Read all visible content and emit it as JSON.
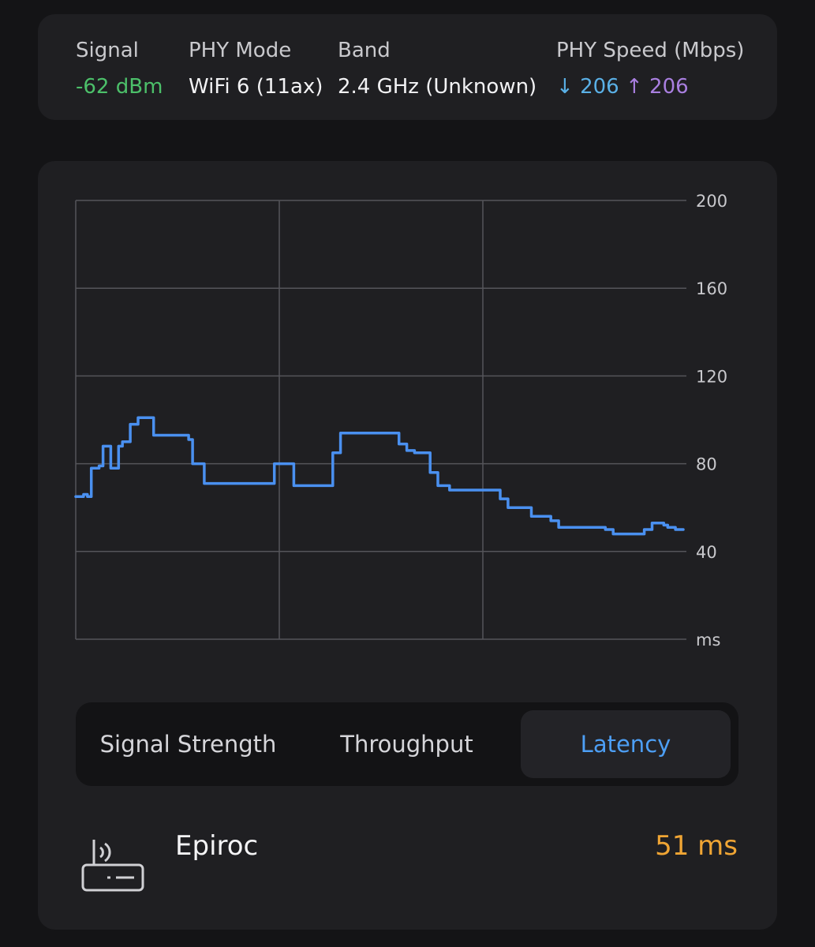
{
  "info": {
    "signal": {
      "label": "Signal",
      "value": "-62 dBm"
    },
    "phy_mode": {
      "label": "PHY Mode",
      "value": "WiFi 6 (11ax)"
    },
    "band": {
      "label": "Band",
      "value": "2.4 GHz (Unknown)"
    },
    "phy_speed": {
      "label": "PHY Speed (Mbps)",
      "down_arrow": "↓",
      "down": "206",
      "up_arrow": "↑",
      "up": "206"
    }
  },
  "chart_data": {
    "type": "line",
    "title": "",
    "xlabel": "",
    "ylabel": "ms",
    "ylim": [
      0,
      200
    ],
    "y_ticks": [
      "200",
      "160",
      "120",
      "80",
      "40",
      "ms"
    ],
    "grid": true,
    "vertical_grid_divisions": 3,
    "series": [
      {
        "color": "#4a90f0",
        "values": [
          65,
          65,
          66,
          65,
          78,
          78,
          79,
          88,
          88,
          78,
          78,
          88,
          90,
          90,
          98,
          98,
          101,
          101,
          101,
          101,
          93,
          93,
          93,
          93,
          93,
          93,
          93,
          93,
          93,
          91,
          80,
          80,
          80,
          71,
          71,
          71,
          71,
          71,
          71,
          71,
          71,
          71,
          71,
          71,
          71,
          71,
          71,
          71,
          71,
          71,
          71,
          80,
          80,
          80,
          80,
          80,
          70,
          70,
          70,
          70,
          70,
          70,
          70,
          70,
          70,
          70,
          85,
          85,
          94,
          94,
          94,
          94,
          94,
          94,
          94,
          94,
          94,
          94,
          94,
          94,
          94,
          94,
          94,
          89,
          89,
          86,
          86,
          85,
          85,
          85,
          85,
          76,
          76,
          70,
          70,
          70,
          68,
          68,
          68,
          68,
          68,
          68,
          68,
          68,
          68,
          68,
          68,
          68,
          68,
          64,
          64,
          60,
          60,
          60,
          60,
          60,
          60,
          56,
          56,
          56,
          56,
          56,
          54,
          54,
          51,
          51,
          51,
          51,
          51,
          51,
          51,
          51,
          51,
          51,
          51,
          51,
          50,
          50,
          48,
          48,
          48,
          48,
          48,
          48,
          48,
          48,
          50,
          50,
          53,
          53,
          53,
          52,
          51,
          51,
          50,
          50,
          50
        ]
      }
    ]
  },
  "tabs": [
    {
      "label": "Signal Strength",
      "active": false
    },
    {
      "label": "Throughput",
      "active": false
    },
    {
      "label": "Latency",
      "active": true
    }
  ],
  "device": {
    "icon": "router-icon",
    "name": "Epiroc",
    "latency": "51 ms"
  },
  "colors": {
    "accent": "#4d9ff5",
    "signal_good": "#4cc06a",
    "download": "#5ab0e6",
    "upload": "#a97fe0",
    "latency_value": "#f0a534"
  }
}
